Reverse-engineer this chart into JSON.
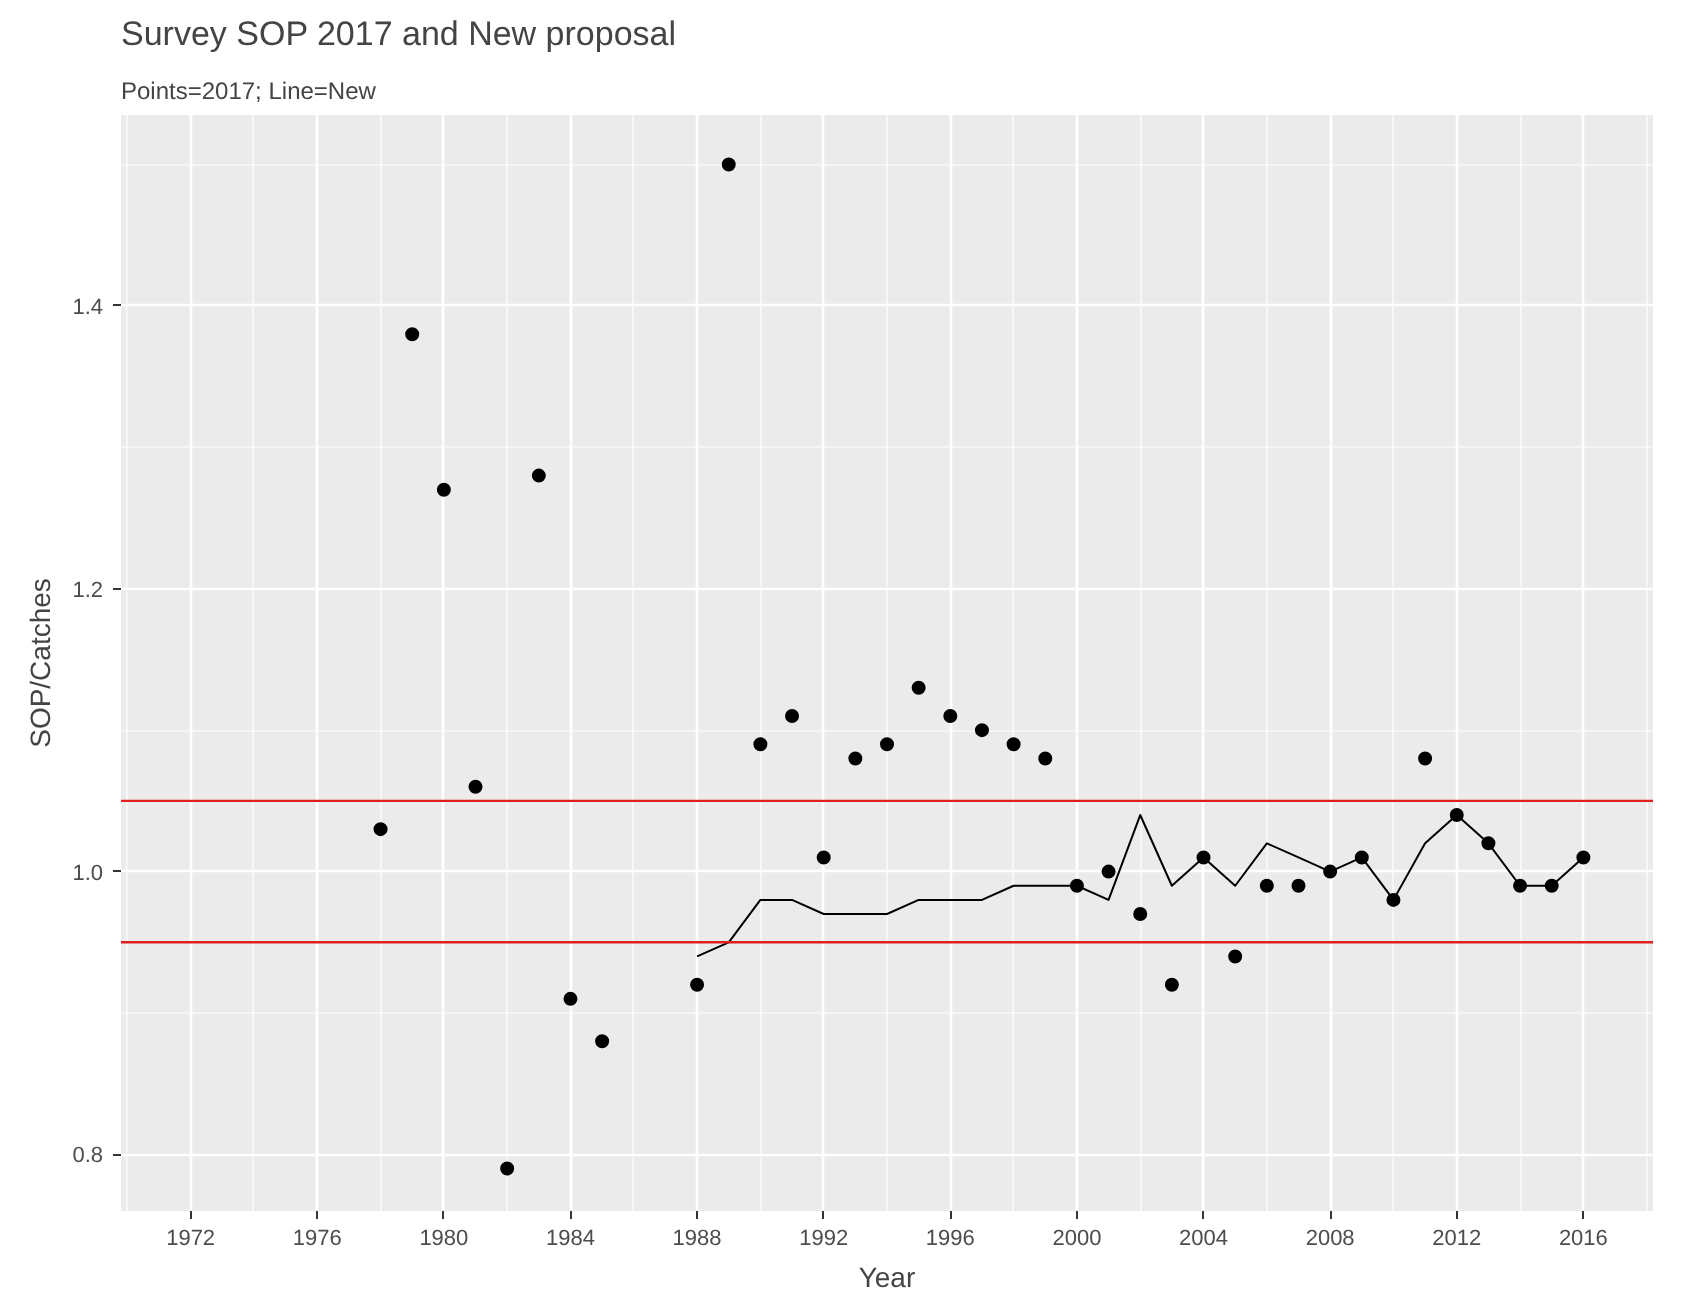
{
  "chart_data": {
    "type": "scatter",
    "title": "Survey SOP 2017 and New proposal",
    "subtitle": "Points=2017; Line=New",
    "xlabel": "Year",
    "ylabel": "SOP/Catches",
    "xlim": [
      1969.8,
      2018.2
    ],
    "ylim": [
      0.76,
      1.535
    ],
    "xticks": [
      1972,
      1976,
      1980,
      1984,
      1988,
      1992,
      1996,
      2000,
      2004,
      2008,
      2012,
      2016
    ],
    "yticks": [
      {
        "value": 0.8,
        "label": "0.8"
      },
      {
        "value": 1.0,
        "label": "1.0"
      },
      {
        "value": 1.2,
        "label": "1.2"
      },
      {
        "value": 1.4,
        "label": "1.4"
      }
    ],
    "grid": true,
    "series": [
      {
        "marker": "circle",
        "color": "#000000",
        "x": [
          1978,
          1979,
          1980,
          1981,
          1982,
          1983,
          1984,
          1985,
          1988,
          1989,
          1990,
          1991,
          1992,
          1993,
          1994,
          1995,
          1996,
          1997,
          1998,
          1999,
          2000,
          2001,
          2002,
          2003,
          2004,
          2005,
          2006,
          2007,
          2008,
          2009,
          2010,
          2011,
          2012,
          2013,
          2014,
          2015,
          2016
        ],
        "values": [
          1.03,
          1.38,
          1.27,
          1.06,
          0.79,
          1.28,
          0.91,
          0.88,
          0.92,
          1.5,
          1.09,
          1.11,
          1.01,
          1.08,
          1.09,
          1.13,
          1.11,
          1.1,
          1.09,
          1.08,
          0.99,
          1.0,
          0.97,
          0.92,
          1.01,
          0.94,
          0.99,
          0.99,
          1.0,
          1.01,
          0.98,
          1.08,
          1.04,
          1.02,
          0.99,
          0.99,
          1.01
        ]
      },
      {
        "type": "line",
        "color": "#000000",
        "x": [
          1988,
          1989,
          1990,
          1991,
          1992,
          1993,
          1994,
          1995,
          1996,
          1997,
          1998,
          1999,
          2000,
          2001,
          2002,
          2003,
          2004,
          2005,
          2006,
          2007,
          2008,
          2009,
          2010,
          2011,
          2012,
          2013,
          2014,
          2015,
          2016
        ],
        "values": [
          0.94,
          0.95,
          0.98,
          0.98,
          0.97,
          0.97,
          0.97,
          0.98,
          0.98,
          0.98,
          0.99,
          0.99,
          0.99,
          0.98,
          1.04,
          0.99,
          1.01,
          0.99,
          1.02,
          1.01,
          1.0,
          1.01,
          0.98,
          1.02,
          1.04,
          1.02,
          0.99,
          0.99,
          1.01
        ]
      }
    ],
    "ref_lines": [
      {
        "axis": "y",
        "value": 1.05,
        "color": "#e02020"
      },
      {
        "axis": "y",
        "value": 0.95,
        "color": "#e02020"
      }
    ]
  }
}
